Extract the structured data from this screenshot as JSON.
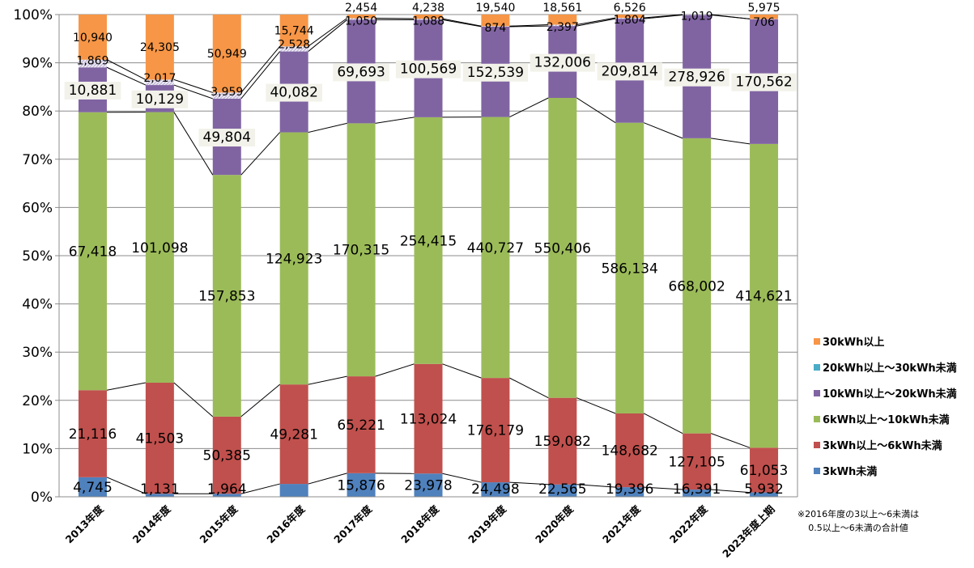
{
  "chart_data": {
    "type": "bar",
    "stacked": true,
    "normalized": true,
    "categories": [
      "2013年度",
      "2014年度",
      "2015年度",
      "2016年度",
      "2017年度",
      "2018年度",
      "2019年度",
      "2020年度",
      "2021年度",
      "2022年度",
      "2023年度上期"
    ],
    "ylim": [
      0,
      100
    ],
    "yticks": [
      "0%",
      "10%",
      "20%",
      "30%",
      "40%",
      "50%",
      "60%",
      "70%",
      "80%",
      "90%",
      "100%"
    ],
    "grid": true,
    "legend_position": "right",
    "series": [
      {
        "name": "3kWh未満",
        "color": "#4f81bd",
        "values": [
          4745,
          1131,
          1964,
          6384,
          15876,
          23978,
          24498,
          22565,
          19396,
          16391,
          5932
        ],
        "labels": [
          "4,745",
          "1,131",
          "1,964",
          "",
          "15,876",
          "23,978",
          "24,498",
          "22,565",
          "19,396",
          "16,391",
          "5,932"
        ]
      },
      {
        "name": "3kWh以上～6kWh未満",
        "color": "#c0504d",
        "values": [
          21116,
          41503,
          50385,
          49281,
          65221,
          113024,
          176179,
          159082,
          148682,
          127105,
          61053
        ],
        "labels": [
          "21,116",
          "41,503",
          "50,385",
          "49,281",
          "65,221",
          "113,024",
          "176,179",
          "159,082",
          "148,682",
          "127,105",
          "61,053"
        ]
      },
      {
        "name": "6kWh以上～10kWh未満",
        "color": "#9bbb59",
        "values": [
          67418,
          101098,
          157853,
          124923,
          170315,
          254415,
          440727,
          550406,
          586134,
          668002,
          414621
        ],
        "labels": [
          "67,418",
          "101,098",
          "157,853",
          "124,923",
          "170,315",
          "254,415",
          "440,727",
          "550,406",
          "586,134",
          "668,002",
          "414,621"
        ]
      },
      {
        "name": "10kWh以上～20kWh未満",
        "color": "#8064a2",
        "values": [
          10881,
          10129,
          49804,
          40082,
          69693,
          100569,
          152539,
          132006,
          209814,
          278926,
          170562
        ],
        "labels": [
          "10,881",
          "10,129",
          "49,804",
          "40,082",
          "69,693",
          "100,569",
          "152,539",
          "132,006",
          "209,814",
          "278,926",
          "170,562"
        ]
      },
      {
        "name": "20kWh以上～30kWh未満",
        "color": "#4bacc6",
        "values": [
          1869,
          2017,
          3959,
          2528,
          1050,
          1088,
          874,
          2397,
          1804,
          1019,
          7
        ],
        "labels": [
          "1,869",
          "2,017",
          "3,959",
          "2,528",
          "1,050",
          "1,088",
          "874",
          "2,397",
          "1,804",
          "1,019",
          ""
        ]
      },
      {
        "name": "30kWh以上",
        "color": "#f79646",
        "values": [
          10940,
          24305,
          50949,
          15744,
          2454,
          4238,
          19540,
          18561,
          6526,
          0,
          5975
        ],
        "labels": [
          "10,940",
          "24,305",
          "50,949",
          "15,744",
          "2,454",
          "4,238",
          "19,540",
          "18,561",
          "6,526",
          "",
          "5,975"
        ]
      }
    ],
    "overlap_labels": [
      {
        "category_index": 10,
        "text": "706"
      }
    ],
    "note": [
      "※2016年度の3以上～6未満は",
      "0.5以上～6未満の合計値"
    ]
  }
}
